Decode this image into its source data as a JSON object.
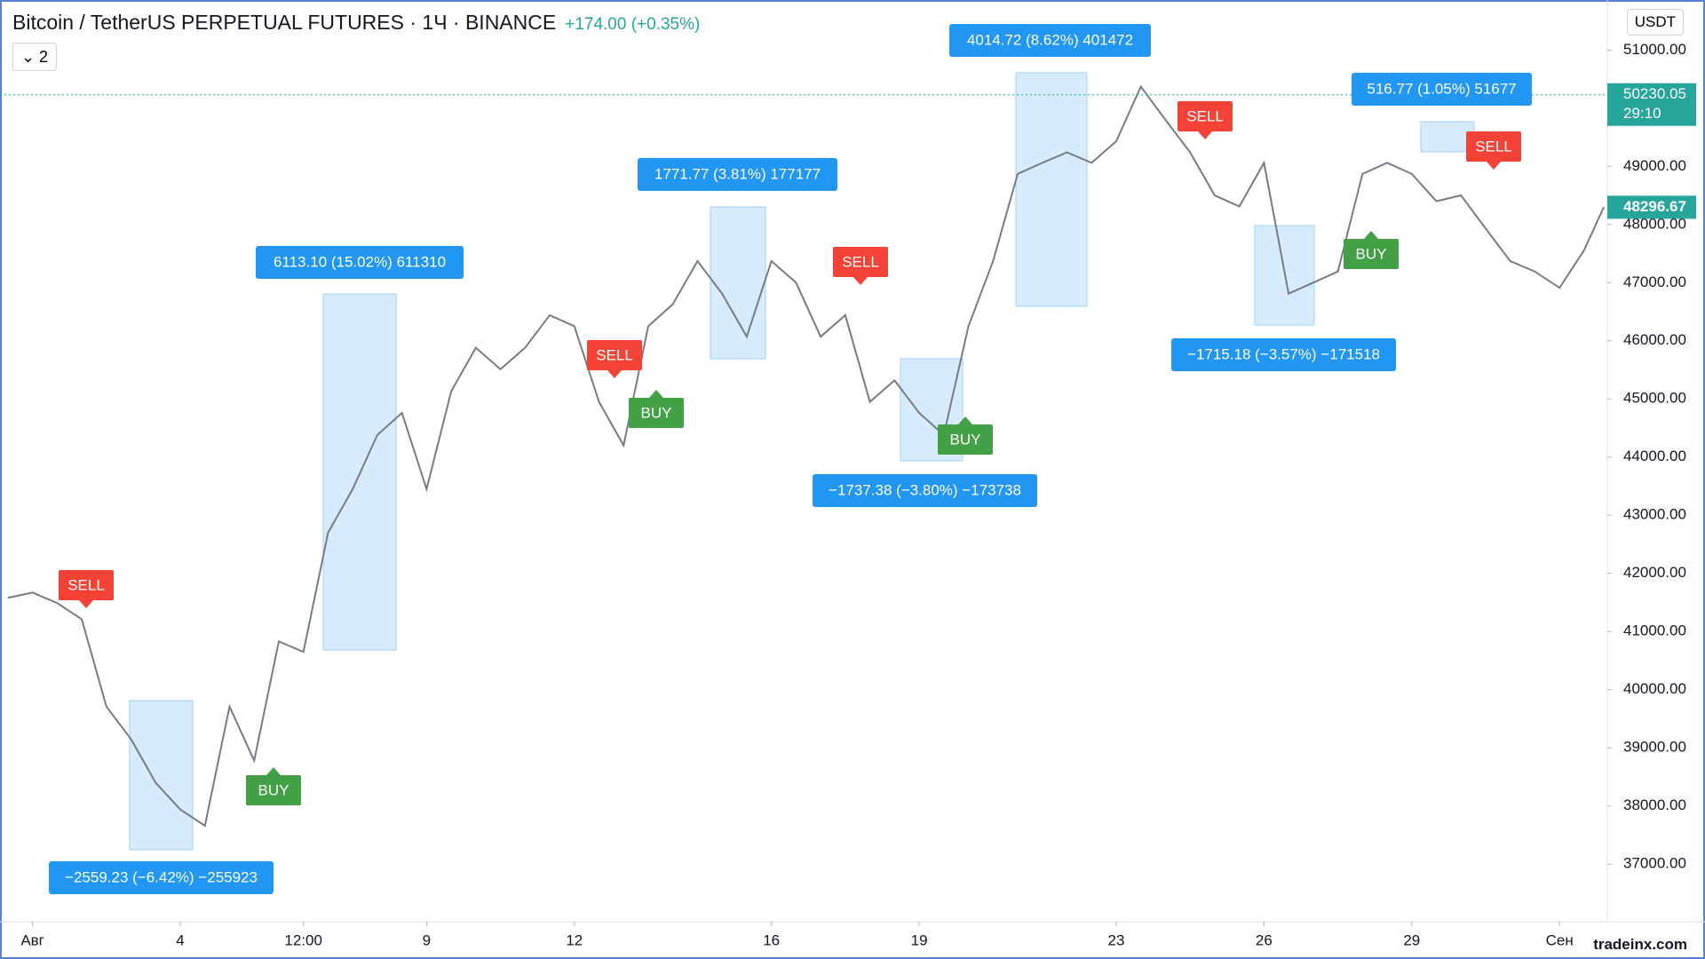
{
  "header": {
    "symbol": "Bitcoin / TetherUS PERPETUAL FUTURES · 1Ч · BINANCE",
    "change": "+174.00 (+0.35%)",
    "indicator_count": "2",
    "currency": "USDT"
  },
  "chart_data": {
    "type": "line",
    "color": "#787b86",
    "x": [
      -0.5,
      0,
      0.5,
      1,
      1.5,
      2,
      2.5,
      3,
      3.5,
      4,
      4.5,
      5,
      5.5,
      6,
      6.5,
      7,
      7.5,
      8,
      8.5,
      9,
      9.5,
      10,
      10.5,
      11,
      11.5,
      12,
      12.5,
      13,
      13.5,
      14,
      14.5,
      15,
      15.5,
      16,
      16.5,
      17,
      17.5,
      18,
      18.5,
      19,
      19.5,
      20,
      20.5,
      21,
      21.5,
      22,
      22.5,
      23,
      23.5,
      24,
      24.5,
      25,
      25.5,
      26,
      26.5,
      27,
      27.5,
      28,
      28.5,
      29,
      29.5,
      30,
      30.5,
      31,
      31.5,
      31.9
    ],
    "values": [
      41580,
      41670,
      41490,
      41210,
      39710,
      39150,
      38400,
      37940,
      37660,
      39710,
      38780,
      40830,
      40650,
      42700,
      43450,
      44380,
      44760,
      43450,
      45130,
      45880,
      45510,
      45880,
      46440,
      46250,
      44950,
      44200,
      46250,
      46630,
      47370,
      46810,
      46070,
      47370,
      47000,
      46070,
      46440,
      44950,
      45320,
      44760,
      44380,
      46250,
      47370,
      48870,
      49060,
      49240,
      49060,
      49430,
      50370,
      49800,
      49240,
      48500,
      48310,
      49060,
      46810,
      47000,
      47190,
      48870,
      49060,
      48870,
      48400,
      48500,
      47930,
      47370,
      47190,
      46910,
      47560,
      48300
    ],
    "xlim": [
      -0.66,
      31.97
    ],
    "xticks": [
      {
        "value": 0,
        "label": "Авг"
      },
      {
        "value": 3,
        "label": "4"
      },
      {
        "value": 5.5,
        "label": "12:00"
      },
      {
        "value": 8,
        "label": "9"
      },
      {
        "value": 11,
        "label": "12"
      },
      {
        "value": 15,
        "label": "16"
      },
      {
        "value": 18,
        "label": "19"
      },
      {
        "value": 22,
        "label": "23"
      },
      {
        "value": 25,
        "label": "26"
      },
      {
        "value": 28,
        "label": "29"
      },
      {
        "value": 31,
        "label": "Сен"
      }
    ],
    "ylim": [
      36010,
      51860
    ],
    "yticks": [
      {
        "value": 37000,
        "label": "37000.00"
      },
      {
        "value": 38000,
        "label": "38000.00"
      },
      {
        "value": 39000,
        "label": "39000.00"
      },
      {
        "value": 40000,
        "label": "40000.00"
      },
      {
        "value": 41000,
        "label": "41000.00"
      },
      {
        "value": 42000,
        "label": "42000.00"
      },
      {
        "value": 43000,
        "label": "43000.00"
      },
      {
        "value": 44000,
        "label": "44000.00"
      },
      {
        "value": 45000,
        "label": "45000.00"
      },
      {
        "value": 46000,
        "label": "46000.00"
      },
      {
        "value": 47000,
        "label": "47000.00"
      },
      {
        "value": 48000,
        "label": "48000.00"
      },
      {
        "value": 49000,
        "label": "49000.00"
      },
      {
        "value": 50000,
        "label": "50000.00"
      },
      {
        "value": 51000,
        "label": "51000.00"
      }
    ],
    "grid": false,
    "mark_price": 50230.05,
    "countdown": "29:10",
    "last_price": 48296.67,
    "annotations": [
      "4014.72 (8.62%) 401472",
      "1771.77 (3.81%) 177177",
      "6113.10 (15.02%) 611310",
      "516.77 (1.05%) 51677",
      "−1715.18 (−3.57%) −171518",
      "−1737.38 (−3.80%) −173738",
      "−2559.23 (−6.42%) −255923"
    ],
    "signals": [
      "SELL",
      "SELL",
      "SELL",
      "SELL",
      "SELL",
      "BUY",
      "BUY",
      "BUY",
      "BUY"
    ]
  },
  "watermark": "tradeinx.com"
}
